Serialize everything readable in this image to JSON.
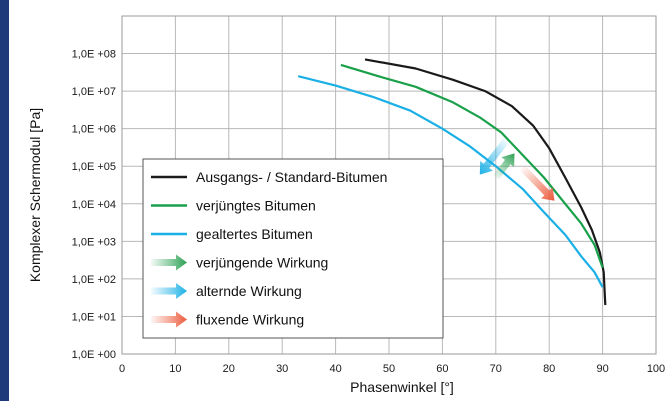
{
  "chart_data": {
    "type": "line",
    "xlabel": "Phasenwinkel [°]",
    "ylabel": "Komplexer Schermodul [Pa]",
    "xlim": [
      0,
      100
    ],
    "x_ticks": [
      0,
      10,
      20,
      30,
      40,
      50,
      60,
      70,
      80,
      90,
      100
    ],
    "ylim": [
      1,
      1000000000
    ],
    "y_scale": "log",
    "y_ticks": [
      1,
      10,
      100,
      1000,
      10000,
      100000,
      1000000,
      10000000,
      100000000
    ],
    "y_tick_labels": [
      "1,0E +00",
      "1,0E +01",
      "1,0E +02",
      "1,0E +03",
      "1,0E +04",
      "1,0E +05",
      "1,0E +06",
      "1,0E +07",
      "1,0E +08"
    ],
    "grid": true,
    "legend_position": "lower-left",
    "series": [
      {
        "name": "Ausgangs- / Standard-Bitumen",
        "color": "#1a1a1a",
        "points": [
          [
            45.5,
            70000000
          ],
          [
            55,
            40000000
          ],
          [
            62,
            20000000
          ],
          [
            68,
            10000000
          ],
          [
            73,
            4000000
          ],
          [
            77,
            1200000
          ],
          [
            80,
            300000
          ],
          [
            83,
            50000
          ],
          [
            86,
            8000
          ],
          [
            88,
            2000
          ],
          [
            89.5,
            500
          ],
          [
            90.2,
            150
          ],
          [
            90.5,
            20
          ]
        ]
      },
      {
        "name": "verjüngtes Bitumen",
        "color": "#1aa04a",
        "points": [
          [
            41,
            50000000
          ],
          [
            48,
            25000000
          ],
          [
            55,
            13000000
          ],
          [
            62,
            5000000
          ],
          [
            67,
            2000000
          ],
          [
            71,
            800000
          ],
          [
            75,
            200000
          ],
          [
            79,
            50000
          ],
          [
            83,
            10000
          ],
          [
            86,
            3000
          ],
          [
            88.5,
            800
          ],
          [
            90,
            200
          ]
        ]
      },
      {
        "name": "gealtertes Bitumen",
        "color": "#1ab0e6",
        "points": [
          [
            33,
            25000000
          ],
          [
            40,
            14000000
          ],
          [
            47,
            7000000
          ],
          [
            54,
            3000000
          ],
          [
            60,
            1000000
          ],
          [
            65,
            350000
          ],
          [
            70,
            100000
          ],
          [
            75,
            25000
          ],
          [
            79,
            6000
          ],
          [
            83,
            1500
          ],
          [
            86,
            400
          ],
          [
            88.5,
            150
          ],
          [
            90,
            60
          ]
        ]
      }
    ],
    "effect_legend": [
      {
        "label": "verjüngende Wirkung",
        "color": "#2aa152"
      },
      {
        "label": "alternde Wirkung",
        "color": "#1ab0e6"
      },
      {
        "label": "fluxende Wirkung",
        "color": "#ec5a3a"
      }
    ],
    "effect_arrows": [
      {
        "effect": "alternde Wirkung",
        "color": "#1ab0e6",
        "from": [
          72,
          500000
        ],
        "to": [
          67,
          60000
        ]
      },
      {
        "effect": "verjüngende Wirkung",
        "color": "#2aa152",
        "from": [
          70,
          50000
        ],
        "to": [
          73.5,
          220000
        ]
      },
      {
        "effect": "fluxende Wirkung",
        "color": "#ec5a3a",
        "from": [
          75,
          90000
        ],
        "to": [
          81,
          12000
        ]
      }
    ]
  }
}
